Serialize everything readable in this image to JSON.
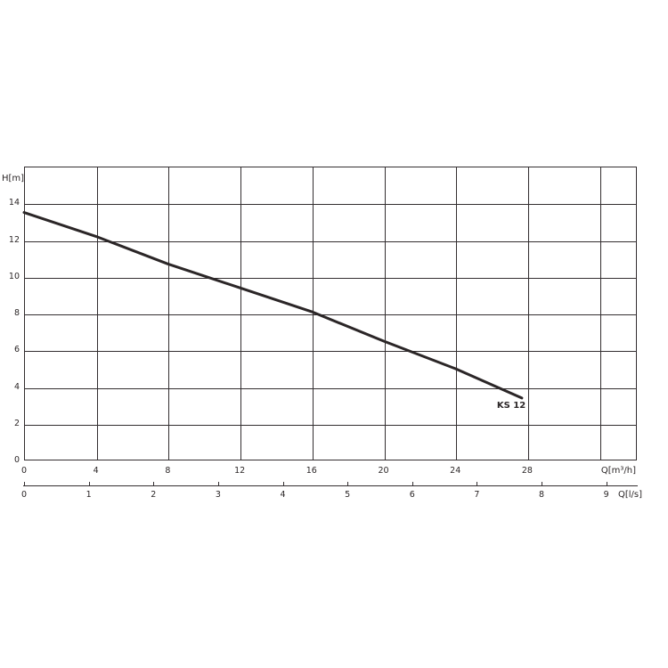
{
  "chart": {
    "y_axis_title": "H[m]",
    "x_axis_title": "Q[m³/h]",
    "x2_axis_title": "Q[l/s]",
    "curve_label": "KS 12",
    "colors": {
      "background": "#ffffff",
      "grid": "#332e30",
      "curve": "#2b2627",
      "text": "#2b2627"
    }
  },
  "chart_data": {
    "type": "line",
    "title": "",
    "ylabel": "H[m]",
    "xlabel": "Q[m³/h]",
    "x2label": "Q[l/s]",
    "xlim": [
      0,
      34.1
    ],
    "ylim": [
      0,
      16
    ],
    "grid": true,
    "x_tick_labels": [
      0,
      4,
      8,
      12,
      16,
      20,
      24,
      28
    ],
    "x_gridlines": [
      4,
      8,
      12,
      16,
      20,
      24,
      28,
      32
    ],
    "y_tick_labels": [
      0,
      2,
      4,
      6,
      8,
      10,
      12,
      14
    ],
    "y_gridlines": [
      2,
      4,
      6,
      8,
      10,
      12,
      14
    ],
    "x2_tick_labels": [
      0,
      1,
      2,
      3,
      4,
      5,
      6,
      7,
      8,
      9
    ],
    "x2_to_x_factor": 3.6,
    "legend_position": "none",
    "series": [
      {
        "name": "KS 12",
        "x": [
          0,
          4,
          8,
          12,
          16,
          20,
          24,
          27.7
        ],
        "y": [
          13.5,
          12.2,
          10.7,
          9.4,
          8.1,
          6.5,
          5.0,
          3.4
        ]
      }
    ]
  }
}
